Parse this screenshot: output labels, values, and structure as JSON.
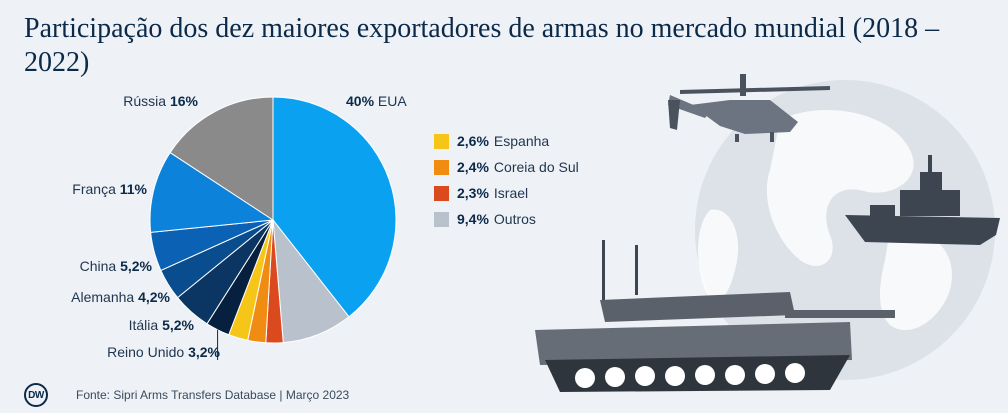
{
  "title": "Participação dos dez maiores exportadores de armas no mercado mundial (2018 – 2022)",
  "footer": {
    "logo": "DW",
    "source": "Fonte: Sipri Arms Transfers Database | Março 2023"
  },
  "colors": {
    "background": "#eef1f5",
    "text": "#0b2a4a"
  },
  "chart_data": {
    "type": "pie",
    "title": "Participação dos dez maiores exportadores de armas no mercado mundial (2018 – 2022)",
    "slices": [
      {
        "name": "EUA",
        "value": 40,
        "label": "40%",
        "color": "#0aa2f0"
      },
      {
        "name": "Outros",
        "value": 9.4,
        "label": "9,4%",
        "color": "#b9c2cc"
      },
      {
        "name": "Israel",
        "value": 2.3,
        "label": "2,3%",
        "color": "#db4a1f"
      },
      {
        "name": "Coreia do Sul",
        "value": 2.4,
        "label": "2,4%",
        "color": "#f08c12"
      },
      {
        "name": "Espanha",
        "value": 2.6,
        "label": "2,6%",
        "color": "#f5c518"
      },
      {
        "name": "Reino Unido",
        "value": 3.2,
        "label": "3,2%",
        "color": "#07203f"
      },
      {
        "name": "Itália",
        "value": 5.2,
        "label": "5,2%",
        "color": "#0b3563"
      },
      {
        "name": "Alemanha",
        "value": 4.2,
        "label": "4,2%",
        "color": "#0a4d8e"
      },
      {
        "name": "China",
        "value": 5.2,
        "label": "5,2%",
        "color": "#0b62b4"
      },
      {
        "name": "França",
        "value": 11,
        "label": "11%",
        "color": "#0c82da"
      },
      {
        "name": "Rússia",
        "value": 16,
        "label": "16%",
        "color": "#8a8a8a"
      }
    ],
    "external_labels": [
      "EUA",
      "Rússia",
      "França",
      "China",
      "Alemanha",
      "Itália",
      "Reino Unido"
    ],
    "legend": [
      "Espanha",
      "Coreia do Sul",
      "Israel",
      "Outros"
    ]
  }
}
